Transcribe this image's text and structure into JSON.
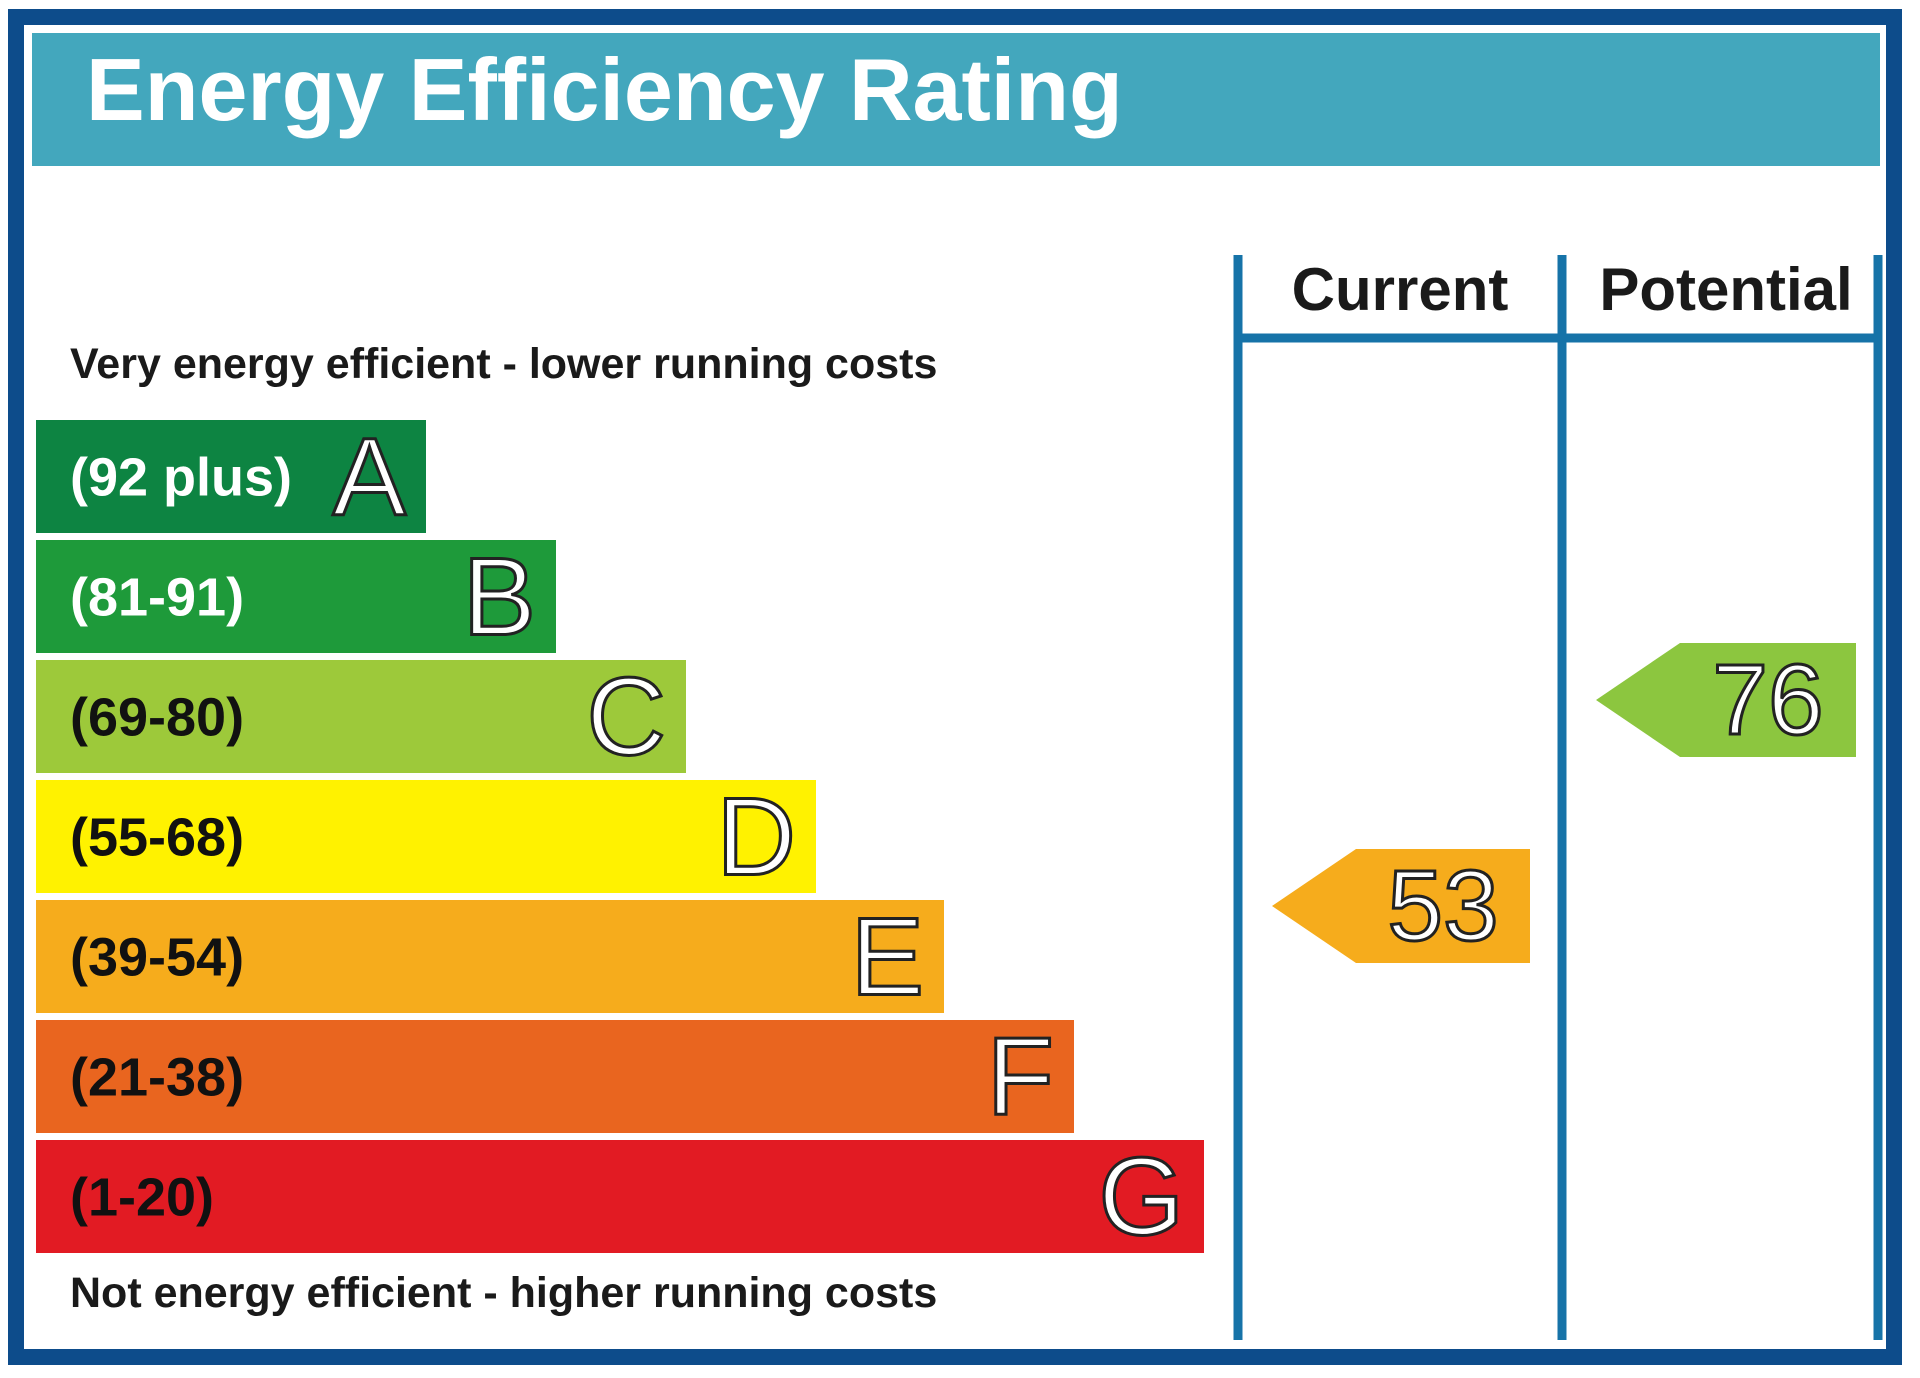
{
  "title": "Energy Efficiency Rating",
  "columns": {
    "current": "Current",
    "potential": "Potential"
  },
  "notes": {
    "top": "Very energy efficient - lower running costs",
    "bottom": "Not energy efficient - higher running costs"
  },
  "colors": {
    "frame": "#0d4c8b",
    "header": "#43a7bd",
    "divider": "#1673a8",
    "label_dark": "#111111",
    "label_light": "#ffffff"
  },
  "chart_data": {
    "type": "bar",
    "title": "Energy Efficiency Rating",
    "categories": [
      "A",
      "B",
      "C",
      "D",
      "E",
      "F",
      "G"
    ],
    "ranges": [
      "(92 plus)",
      "(81-91)",
      "(69-80)",
      "(55-68)",
      "(39-54)",
      "(21-38)",
      "(1-20)"
    ],
    "colors": [
      "#0d8442",
      "#1e9a3a",
      "#9dc93a",
      "#fff200",
      "#f6ac1c",
      "#e9651f",
      "#e21b23"
    ],
    "range_text_light": [
      true,
      true,
      false,
      false,
      false,
      false,
      false
    ],
    "current": {
      "label": "Current",
      "value": 53,
      "band": "E",
      "color": "#f6ac1c"
    },
    "potential": {
      "label": "Potential",
      "value": 76,
      "band": "C",
      "color": "#8cc63f"
    }
  }
}
